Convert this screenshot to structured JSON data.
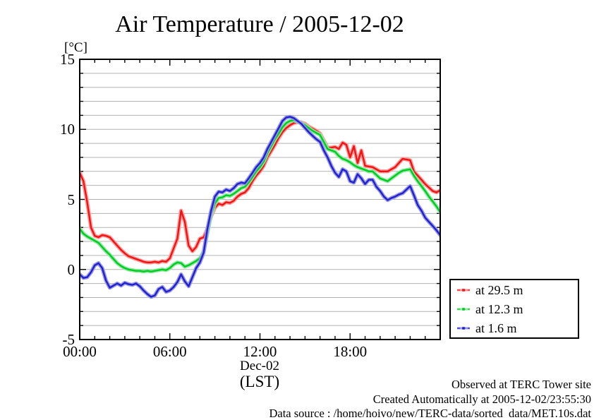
{
  "chart_data": {
    "type": "line",
    "title": "Air Temperature / 2005-12-02",
    "y_unit_label": "[°C]",
    "x_axis_date_label": "Dec-02",
    "x_axis_timezone_label": "(LST)",
    "xlim_hours": [
      0,
      24
    ],
    "ylim": [
      -5,
      15
    ],
    "y_major_ticks": [
      15,
      10,
      5,
      0,
      -5
    ],
    "y_major_tick_labels": [
      "15",
      "10",
      "5",
      "0",
      "-5"
    ],
    "y_minor_tick_step": 1,
    "x_major_ticks_hours": [
      0,
      6,
      12,
      18
    ],
    "x_major_tick_labels": [
      "00:00",
      "06:00",
      "12:00",
      "18:00"
    ],
    "x_minor_tick_step_hours": 1,
    "grid": "horizontal gridlines every 1 degree, no vertical gridlines",
    "grid_color": "#b3b3b3",
    "frame_color": "#000000",
    "legend_position": "outside right, lower area",
    "x_hours": [
      0,
      0.25,
      0.5,
      0.75,
      1,
      1.25,
      1.5,
      1.75,
      2,
      2.25,
      2.5,
      2.75,
      3,
      3.25,
      3.5,
      3.75,
      4,
      4.25,
      4.5,
      4.75,
      5,
      5.25,
      5.5,
      5.75,
      6,
      6.25,
      6.5,
      6.75,
      7,
      7.25,
      7.5,
      7.75,
      8,
      8.25,
      8.5,
      8.75,
      9,
      9.25,
      9.5,
      9.75,
      10,
      10.25,
      10.5,
      10.75,
      11,
      11.25,
      11.5,
      11.75,
      12,
      12.25,
      12.5,
      12.75,
      13,
      13.25,
      13.5,
      13.75,
      14,
      14.25,
      14.5,
      14.75,
      15,
      15.25,
      15.5,
      15.75,
      16,
      16.25,
      16.5,
      16.75,
      17,
      17.25,
      17.5,
      17.75,
      18,
      18.25,
      18.5,
      18.75,
      19,
      19.25,
      19.5,
      19.75,
      20,
      20.25,
      20.5,
      20.75,
      21,
      21.25,
      21.5,
      21.75,
      22,
      22.25,
      22.5,
      22.75,
      23,
      23.25,
      23.5,
      23.75,
      24
    ],
    "series": [
      {
        "name": "at 29.5 m",
        "color": "#f01515",
        "halo_color": "#ff9a9a",
        "values": [
          6.9,
          6.3,
          4.8,
          3.0,
          2.4,
          2.3,
          2.45,
          2.4,
          2.3,
          2.0,
          1.7,
          1.4,
          1.15,
          0.95,
          0.85,
          0.75,
          0.65,
          0.55,
          0.5,
          0.5,
          0.55,
          0.5,
          0.6,
          0.55,
          0.8,
          1.5,
          2.2,
          4.2,
          3.4,
          1.7,
          1.3,
          1.6,
          2.2,
          2.3,
          2.9,
          3.8,
          4.4,
          4.7,
          4.6,
          4.8,
          4.75,
          4.9,
          5.2,
          5.4,
          5.5,
          5.8,
          6.3,
          6.7,
          7.0,
          7.4,
          8.0,
          8.45,
          8.9,
          9.4,
          9.8,
          10.1,
          10.3,
          10.45,
          10.5,
          10.5,
          10.4,
          10.2,
          10.05,
          9.9,
          9.7,
          9.2,
          8.7,
          8.7,
          8.75,
          8.6,
          9.05,
          8.9,
          8.0,
          8.8,
          7.6,
          8.5,
          7.4,
          7.35,
          7.3,
          7.15,
          7.0,
          7.0,
          7.0,
          7.15,
          7.3,
          7.6,
          7.9,
          7.85,
          7.8,
          7.0,
          6.7,
          6.4,
          6.1,
          5.85,
          5.6,
          5.5,
          5.65
        ]
      },
      {
        "name": "at 12.3 m",
        "color": "#00cc22",
        "halo_color": "#92e9a2",
        "values": [
          2.9,
          2.55,
          2.35,
          2.2,
          2.05,
          1.9,
          1.6,
          1.3,
          1.05,
          0.75,
          0.45,
          0.25,
          0.1,
          0.0,
          -0.05,
          -0.1,
          -0.1,
          -0.15,
          -0.1,
          -0.15,
          -0.1,
          -0.05,
          0.0,
          -0.05,
          0.1,
          0.35,
          0.5,
          0.45,
          0.2,
          0.3,
          0.45,
          0.6,
          0.8,
          1.3,
          2.6,
          3.9,
          4.7,
          5.1,
          5.15,
          5.3,
          5.25,
          5.4,
          5.6,
          5.8,
          5.9,
          6.2,
          6.6,
          7.0,
          7.3,
          7.7,
          8.3,
          8.8,
          9.3,
          9.7,
          10.15,
          10.45,
          10.6,
          10.65,
          10.55,
          10.45,
          10.3,
          10.1,
          9.9,
          9.75,
          9.6,
          9.1,
          8.6,
          8.5,
          8.4,
          8.1,
          7.9,
          7.8,
          7.65,
          7.45,
          7.3,
          7.2,
          7.1,
          7.0,
          7.0,
          6.75,
          6.5,
          6.4,
          6.3,
          6.5,
          6.7,
          6.9,
          7.05,
          7.1,
          7.15,
          6.7,
          6.3,
          5.95,
          5.6,
          5.2,
          4.85,
          4.5,
          4.1
        ]
      },
      {
        "name": "at 1.6 m",
        "color": "#2222cc",
        "halo_color": "#9a9ae8",
        "values": [
          -0.35,
          -0.6,
          -0.55,
          -0.2,
          0.3,
          0.45,
          0.1,
          -0.8,
          -1.3,
          -1.15,
          -1.0,
          -1.15,
          -0.95,
          -1.05,
          -1.1,
          -1.0,
          -1.2,
          -1.5,
          -1.75,
          -1.95,
          -1.85,
          -1.4,
          -1.25,
          -1.6,
          -1.5,
          -1.25,
          -0.9,
          -0.35,
          -0.85,
          -1.2,
          -0.55,
          0.1,
          0.5,
          1.2,
          2.9,
          4.2,
          5.2,
          5.55,
          5.5,
          5.7,
          5.6,
          5.8,
          6.1,
          6.2,
          6.15,
          6.5,
          6.9,
          7.3,
          7.6,
          8.0,
          8.6,
          9.1,
          9.6,
          10.1,
          10.6,
          10.85,
          10.9,
          10.8,
          10.6,
          10.4,
          10.1,
          9.8,
          9.55,
          9.3,
          9.1,
          8.5,
          8.0,
          7.4,
          6.9,
          6.6,
          7.15,
          7.0,
          6.3,
          6.2,
          6.8,
          6.5,
          6.1,
          6.4,
          6.4,
          5.9,
          5.6,
          5.2,
          4.95,
          5.1,
          5.2,
          5.35,
          5.45,
          5.7,
          5.95,
          5.3,
          4.6,
          4.2,
          3.7,
          3.4,
          3.1,
          2.8,
          2.45
        ]
      }
    ]
  },
  "footer": {
    "observed": "Observed at TERC Tower site",
    "created": "Created Automatically at 2005-12-02/23:55:30",
    "data_source": "Data source : /home/hoivo/new/TERC-data/sorted  data/MET.10s.dat"
  }
}
